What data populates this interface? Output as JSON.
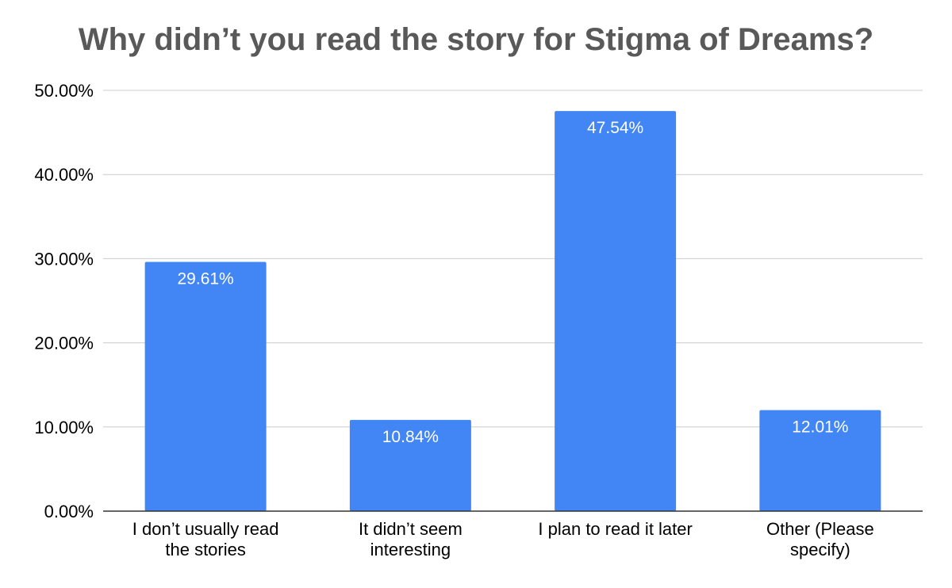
{
  "chart_data": {
    "type": "bar",
    "title": "Why didn’t you read the story for Stigma of Dreams?",
    "categories": [
      [
        "I don’t usually read",
        "the stories"
      ],
      [
        "It didn’t seem",
        "interesting"
      ],
      [
        "I plan to read it later"
      ],
      [
        "Other (Please",
        "specify)"
      ]
    ],
    "values": [
      29.61,
      10.84,
      47.54,
      12.01
    ],
    "data_labels": [
      "29.61%",
      "10.84%",
      "47.54%",
      "12.01%"
    ],
    "yticks": [
      0,
      10,
      20,
      30,
      40,
      50
    ],
    "ytick_labels": [
      "0.00%",
      "10.00%",
      "20.00%",
      "30.00%",
      "40.00%",
      "50.00%"
    ],
    "ylim": [
      0,
      50
    ],
    "xlabel": "",
    "ylabel": "",
    "grid": true,
    "legend": "none",
    "bar_color": "#4285f4",
    "gridline_color": "#cccccc",
    "axis_color": "#333333",
    "title_color": "#595959"
  }
}
